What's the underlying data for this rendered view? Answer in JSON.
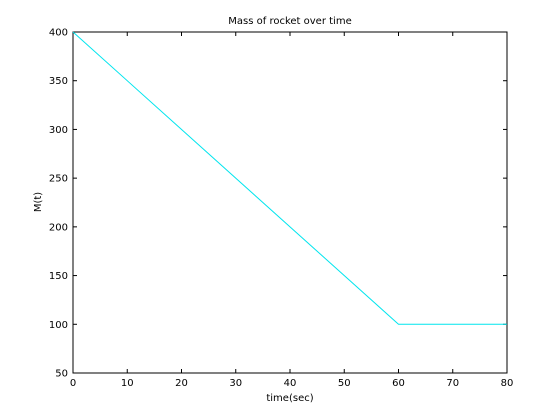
{
  "chart_data": {
    "type": "line",
    "title": "Mass of rocket over time",
    "xlabel": "time(sec)",
    "ylabel": "M(t)",
    "xlim": [
      0,
      80
    ],
    "ylim": [
      50,
      400
    ],
    "xticks": [
      0,
      10,
      20,
      30,
      40,
      50,
      60,
      70,
      80
    ],
    "yticks": [
      50,
      100,
      150,
      200,
      250,
      300,
      350,
      400
    ],
    "grid": false,
    "series": [
      {
        "color": "#00e5ee",
        "x": [
          0,
          60,
          80
        ],
        "y": [
          400,
          100,
          100
        ]
      }
    ]
  }
}
